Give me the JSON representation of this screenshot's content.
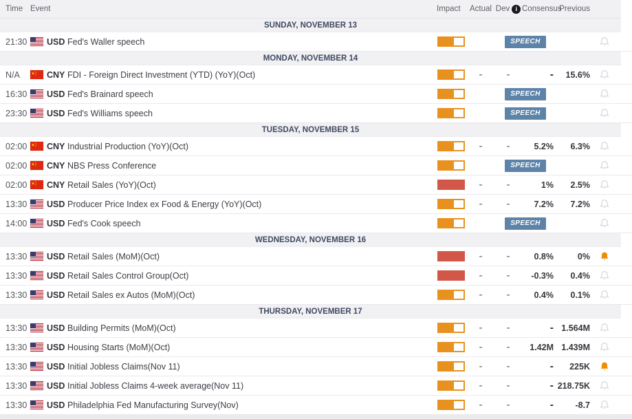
{
  "columns": {
    "time": "Time",
    "event": "Event",
    "impact": "Impact",
    "actual": "Actual",
    "dev": "Dev",
    "info": "i",
    "consensus": "Consensus",
    "previous": "Previous"
  },
  "labels": {
    "speech_badge": "SPEECH"
  },
  "colors": {
    "impact_medium": "#e8911f",
    "impact_high": "#d25749",
    "speech_badge": "#5d83a8",
    "band_bg": "#f1f1f4",
    "bell_inactive": "#d3d5d9",
    "bell_active": "#f08c00",
    "value_text": "#33363b",
    "day_text": "#3f4960"
  },
  "days": [
    {
      "label": "SUNDAY, NOVEMBER 13",
      "events": [
        {
          "time": "21:30",
          "currency": "USD",
          "flag": "us",
          "name": "Fed's Waller speech",
          "impact": "medium",
          "speech": true,
          "actual": "",
          "dev": "",
          "consensus": "",
          "previous": "",
          "alert": false
        }
      ]
    },
    {
      "label": "MONDAY, NOVEMBER 14",
      "events": [
        {
          "time": "N/A",
          "currency": "CNY",
          "flag": "cn",
          "name": "FDI - Foreign Direct Investment (YTD) (YoY)(Oct)",
          "impact": "medium",
          "speech": false,
          "actual": "-",
          "dev": "-",
          "consensus": "-",
          "previous": "15.6%",
          "alert": false
        },
        {
          "time": "16:30",
          "currency": "USD",
          "flag": "us",
          "name": "Fed's Brainard speech",
          "impact": "medium",
          "speech": true,
          "actual": "",
          "dev": "",
          "consensus": "",
          "previous": "",
          "alert": false
        },
        {
          "time": "23:30",
          "currency": "USD",
          "flag": "us",
          "name": "Fed's Williams speech",
          "impact": "medium",
          "speech": true,
          "actual": "",
          "dev": "",
          "consensus": "",
          "previous": "",
          "alert": false
        }
      ]
    },
    {
      "label": "TUESDAY, NOVEMBER 15",
      "events": [
        {
          "time": "02:00",
          "currency": "CNY",
          "flag": "cn",
          "name": "Industrial Production (YoY)(Oct)",
          "impact": "medium",
          "speech": false,
          "actual": "-",
          "dev": "-",
          "consensus": "5.2%",
          "previous": "6.3%",
          "alert": false
        },
        {
          "time": "02:00",
          "currency": "CNY",
          "flag": "cn",
          "name": "NBS Press Conference",
          "impact": "medium",
          "speech": true,
          "actual": "",
          "dev": "",
          "consensus": "",
          "previous": "",
          "alert": false
        },
        {
          "time": "02:00",
          "currency": "CNY",
          "flag": "cn",
          "name": "Retail Sales (YoY)(Oct)",
          "impact": "high",
          "speech": false,
          "actual": "-",
          "dev": "-",
          "consensus": "1%",
          "previous": "2.5%",
          "alert": false
        },
        {
          "time": "13:30",
          "currency": "USD",
          "flag": "us",
          "name": "Producer Price Index ex Food & Energy (YoY)(Oct)",
          "impact": "medium",
          "speech": false,
          "actual": "-",
          "dev": "-",
          "consensus": "7.2%",
          "previous": "7.2%",
          "alert": false
        },
        {
          "time": "14:00",
          "currency": "USD",
          "flag": "us",
          "name": "Fed's Cook speech",
          "impact": "medium",
          "speech": true,
          "actual": "",
          "dev": "",
          "consensus": "",
          "previous": "",
          "alert": false
        }
      ]
    },
    {
      "label": "WEDNESDAY, NOVEMBER 16",
      "events": [
        {
          "time": "13:30",
          "currency": "USD",
          "flag": "us",
          "name": "Retail Sales (MoM)(Oct)",
          "impact": "high",
          "speech": false,
          "actual": "-",
          "dev": "-",
          "consensus": "0.8%",
          "previous": "0%",
          "alert": true
        },
        {
          "time": "13:30",
          "currency": "USD",
          "flag": "us",
          "name": "Retail Sales Control Group(Oct)",
          "impact": "high",
          "speech": false,
          "actual": "-",
          "dev": "-",
          "consensus": "-0.3%",
          "previous": "0.4%",
          "alert": false
        },
        {
          "time": "13:30",
          "currency": "USD",
          "flag": "us",
          "name": "Retail Sales ex Autos (MoM)(Oct)",
          "impact": "medium",
          "speech": false,
          "actual": "-",
          "dev": "-",
          "consensus": "0.4%",
          "previous": "0.1%",
          "alert": false
        }
      ]
    },
    {
      "label": "THURSDAY, NOVEMBER 17",
      "events": [
        {
          "time": "13:30",
          "currency": "USD",
          "flag": "us",
          "name": "Building Permits (MoM)(Oct)",
          "impact": "medium",
          "speech": false,
          "actual": "-",
          "dev": "-",
          "consensus": "-",
          "previous": "1.564M",
          "alert": false
        },
        {
          "time": "13:30",
          "currency": "USD",
          "flag": "us",
          "name": "Housing Starts (MoM)(Oct)",
          "impact": "medium",
          "speech": false,
          "actual": "-",
          "dev": "-",
          "consensus": "1.42M",
          "previous": "1.439M",
          "alert": false
        },
        {
          "time": "13:30",
          "currency": "USD",
          "flag": "us",
          "name": "Initial Jobless Claims(Nov 11)",
          "impact": "medium",
          "speech": false,
          "actual": "-",
          "dev": "-",
          "consensus": "-",
          "previous": "225K",
          "alert": true
        },
        {
          "time": "13:30",
          "currency": "USD",
          "flag": "us",
          "name": "Initial Jobless Claims 4-week average(Nov 11)",
          "impact": "medium",
          "speech": false,
          "actual": "-",
          "dev": "-",
          "consensus": "-",
          "previous": "218.75K",
          "alert": false
        },
        {
          "time": "13:30",
          "currency": "USD",
          "flag": "us",
          "name": "Philadelphia Fed Manufacturing Survey(Nov)",
          "impact": "medium",
          "speech": false,
          "actual": "-",
          "dev": "-",
          "consensus": "-",
          "previous": "-8.7",
          "alert": false
        }
      ]
    }
  ]
}
